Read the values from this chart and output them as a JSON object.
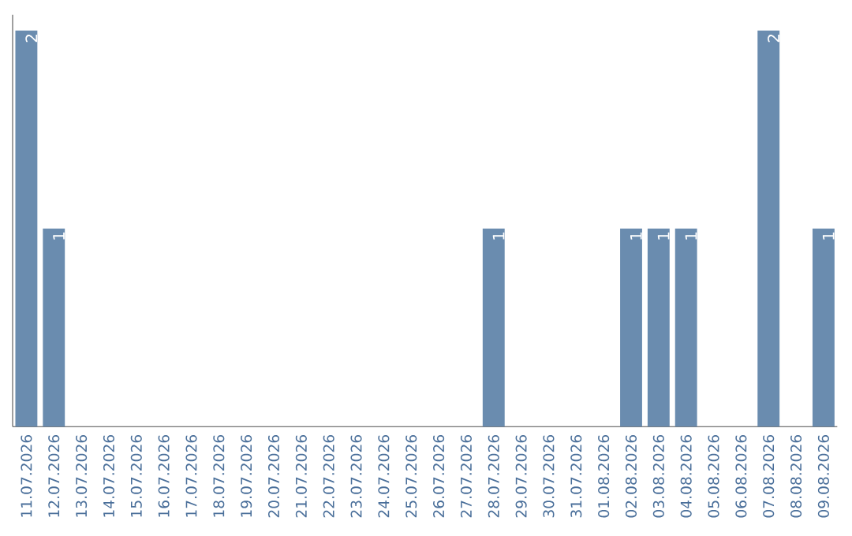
{
  "chart_data": {
    "type": "bar",
    "categories": [
      "11.07.2026",
      "12.07.2026",
      "13.07.2026",
      "14.07.2026",
      "15.07.2026",
      "16.07.2026",
      "17.07.2026",
      "18.07.2026",
      "19.07.2026",
      "20.07.2026",
      "21.07.2026",
      "22.07.2026",
      "23.07.2026",
      "24.07.2026",
      "25.07.2026",
      "26.07.2026",
      "27.07.2026",
      "28.07.2026",
      "29.07.2026",
      "30.07.2026",
      "31.07.2026",
      "01.08.2026",
      "02.08.2026",
      "03.08.2026",
      "04.08.2026",
      "05.08.2026",
      "06.08.2026",
      "07.08.2026",
      "08.08.2026",
      "09.08.2026"
    ],
    "values": [
      2,
      1,
      0,
      0,
      0,
      0,
      0,
      0,
      0,
      0,
      0,
      0,
      0,
      0,
      0,
      0,
      0,
      1,
      0,
      0,
      0,
      0,
      1,
      1,
      1,
      0,
      0,
      2,
      0,
      1
    ],
    "color": "#6a8caf",
    "value_labels": [
      "2",
      "1",
      null,
      null,
      null,
      null,
      null,
      null,
      null,
      null,
      null,
      null,
      null,
      null,
      null,
      null,
      null,
      "1",
      null,
      null,
      null,
      null,
      "1",
      "1",
      "1",
      null,
      null,
      "2",
      null,
      "1"
    ]
  }
}
